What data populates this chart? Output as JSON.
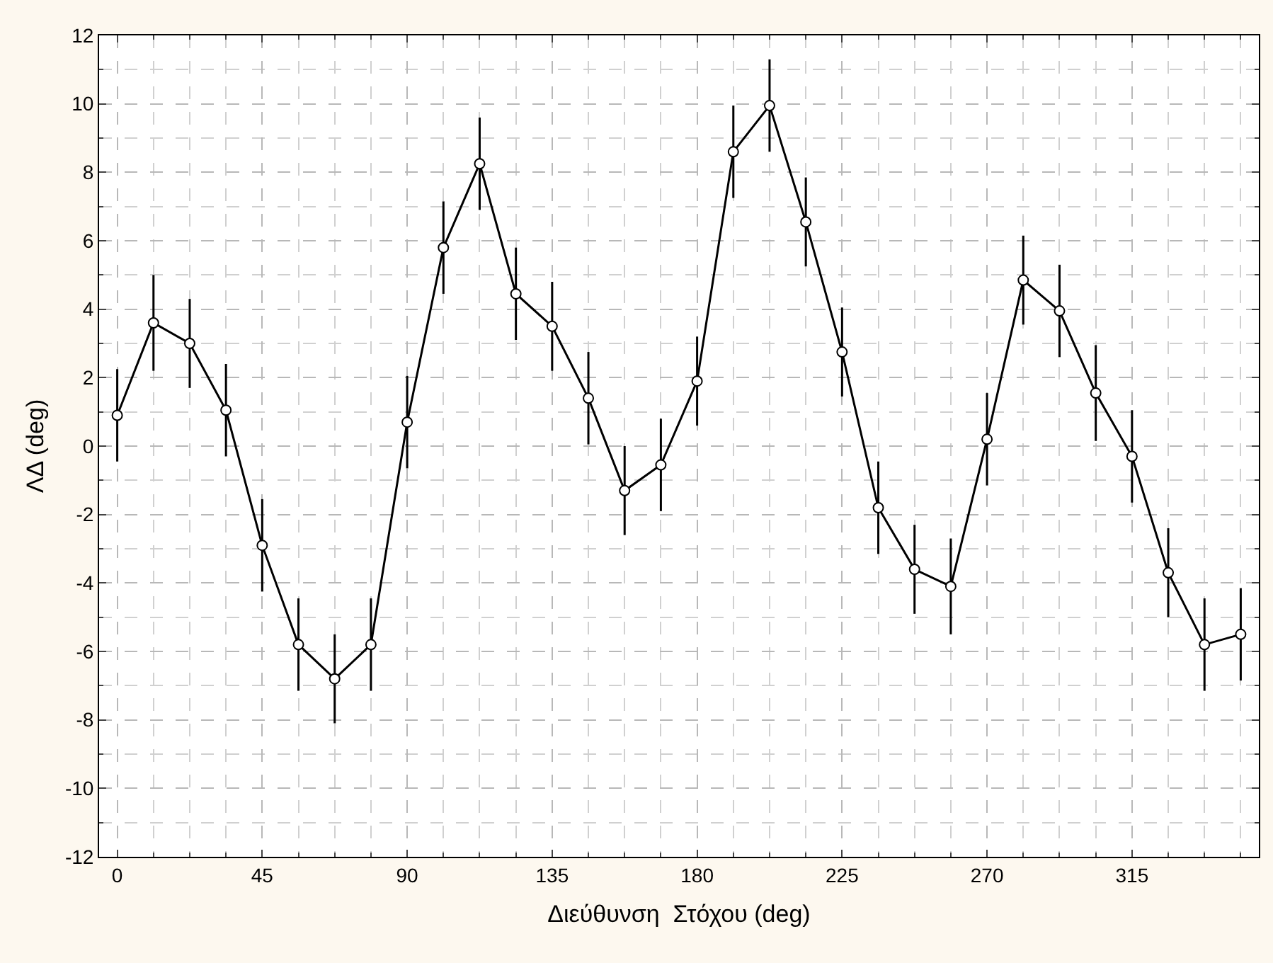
{
  "chart_data": {
    "type": "line",
    "xlabel": "Διεύθυνση  Στόχου (deg)",
    "ylabel": "ΛΔ (deg)",
    "x": [
      0,
      11.25,
      22.5,
      33.75,
      45,
      56.25,
      67.5,
      78.75,
      90,
      101.25,
      112.5,
      123.75,
      135,
      146.25,
      157.5,
      168.75,
      180,
      191.25,
      202.5,
      213.75,
      225,
      236.25,
      247.5,
      258.75,
      270,
      281.25,
      292.5,
      303.75,
      315,
      326.25,
      337.5,
      348.75
    ],
    "series": [
      {
        "color": "#000000",
        "values": [
          0.9,
          3.6,
          3.0,
          1.05,
          -2.9,
          -5.8,
          -6.8,
          -5.8,
          0.7,
          5.8,
          8.25,
          4.45,
          3.5,
          1.4,
          -1.3,
          -0.55,
          1.9,
          8.6,
          9.95,
          6.55,
          2.75,
          -1.8,
          -3.6,
          -4.1,
          0.2,
          4.85,
          3.95,
          1.55,
          -0.3,
          -3.7,
          -5.8,
          -5.5
        ],
        "errors": [
          1.35,
          1.4,
          1.3,
          1.35,
          1.35,
          1.35,
          1.3,
          1.35,
          1.35,
          1.35,
          1.35,
          1.35,
          1.3,
          1.35,
          1.3,
          1.35,
          1.3,
          1.35,
          1.35,
          1.3,
          1.3,
          1.35,
          1.3,
          1.4,
          1.35,
          1.3,
          1.35,
          1.4,
          1.35,
          1.3,
          1.35,
          1.35
        ]
      }
    ],
    "xlim": [
      -5.625,
      354.375
    ],
    "xticks": [
      0,
      45,
      90,
      135,
      180,
      225,
      270,
      315
    ],
    "ylim": [
      -12,
      12
    ],
    "yticks": [
      -12,
      -10,
      -8,
      -6,
      -4,
      -2,
      0,
      2,
      4,
      6,
      8,
      10,
      12
    ],
    "grid": true,
    "marker": "circle",
    "line_style": "solid"
  }
}
